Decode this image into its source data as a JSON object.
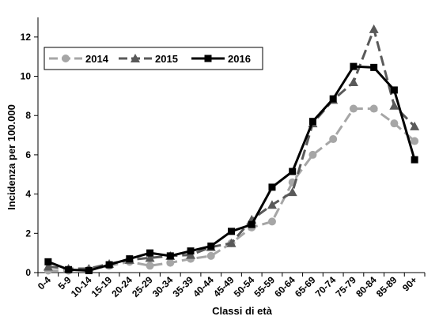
{
  "chart_data": {
    "type": "line",
    "title": "",
    "xlabel": "Classi di età",
    "ylabel": "Incidenza per 100.000",
    "ylim": [
      0,
      13
    ],
    "yticks": [
      0,
      2,
      4,
      6,
      8,
      10,
      12
    ],
    "grid": false,
    "legend_position": "top-left",
    "categories": [
      "0-4",
      "5-9",
      "10-14",
      "15-19",
      "20-24",
      "25-29",
      "30-34",
      "35-39",
      "40-44",
      "45-49",
      "50-54",
      "55-59",
      "60-64",
      "65-69",
      "70-74",
      "75-79",
      "80-84",
      "85-89",
      "90+"
    ],
    "series": [
      {
        "name": "2014",
        "color": "#a6a6a6",
        "line_style": "dashed",
        "marker": "circle",
        "values": [
          0.1,
          0.1,
          0.15,
          0.35,
          0.55,
          0.35,
          0.5,
          0.7,
          0.85,
          1.5,
          2.3,
          2.6,
          4.6,
          6.0,
          6.8,
          8.35,
          8.35,
          7.6,
          6.7
        ]
      },
      {
        "name": "2015",
        "color": "#595959",
        "line_style": "dashed",
        "marker": "triangle",
        "values": [
          0.3,
          0.2,
          0.2,
          0.45,
          0.65,
          0.75,
          0.85,
          0.9,
          1.3,
          1.5,
          2.7,
          3.45,
          4.1,
          7.6,
          8.8,
          9.7,
          12.4,
          8.5,
          7.45
        ]
      },
      {
        "name": "2016",
        "color": "#000000",
        "line_style": "solid",
        "marker": "square",
        "values": [
          0.55,
          0.15,
          0.1,
          0.4,
          0.7,
          1.0,
          0.85,
          1.1,
          1.35,
          2.1,
          2.45,
          4.35,
          5.15,
          7.7,
          8.85,
          10.5,
          10.45,
          9.3,
          5.75
        ]
      }
    ]
  }
}
